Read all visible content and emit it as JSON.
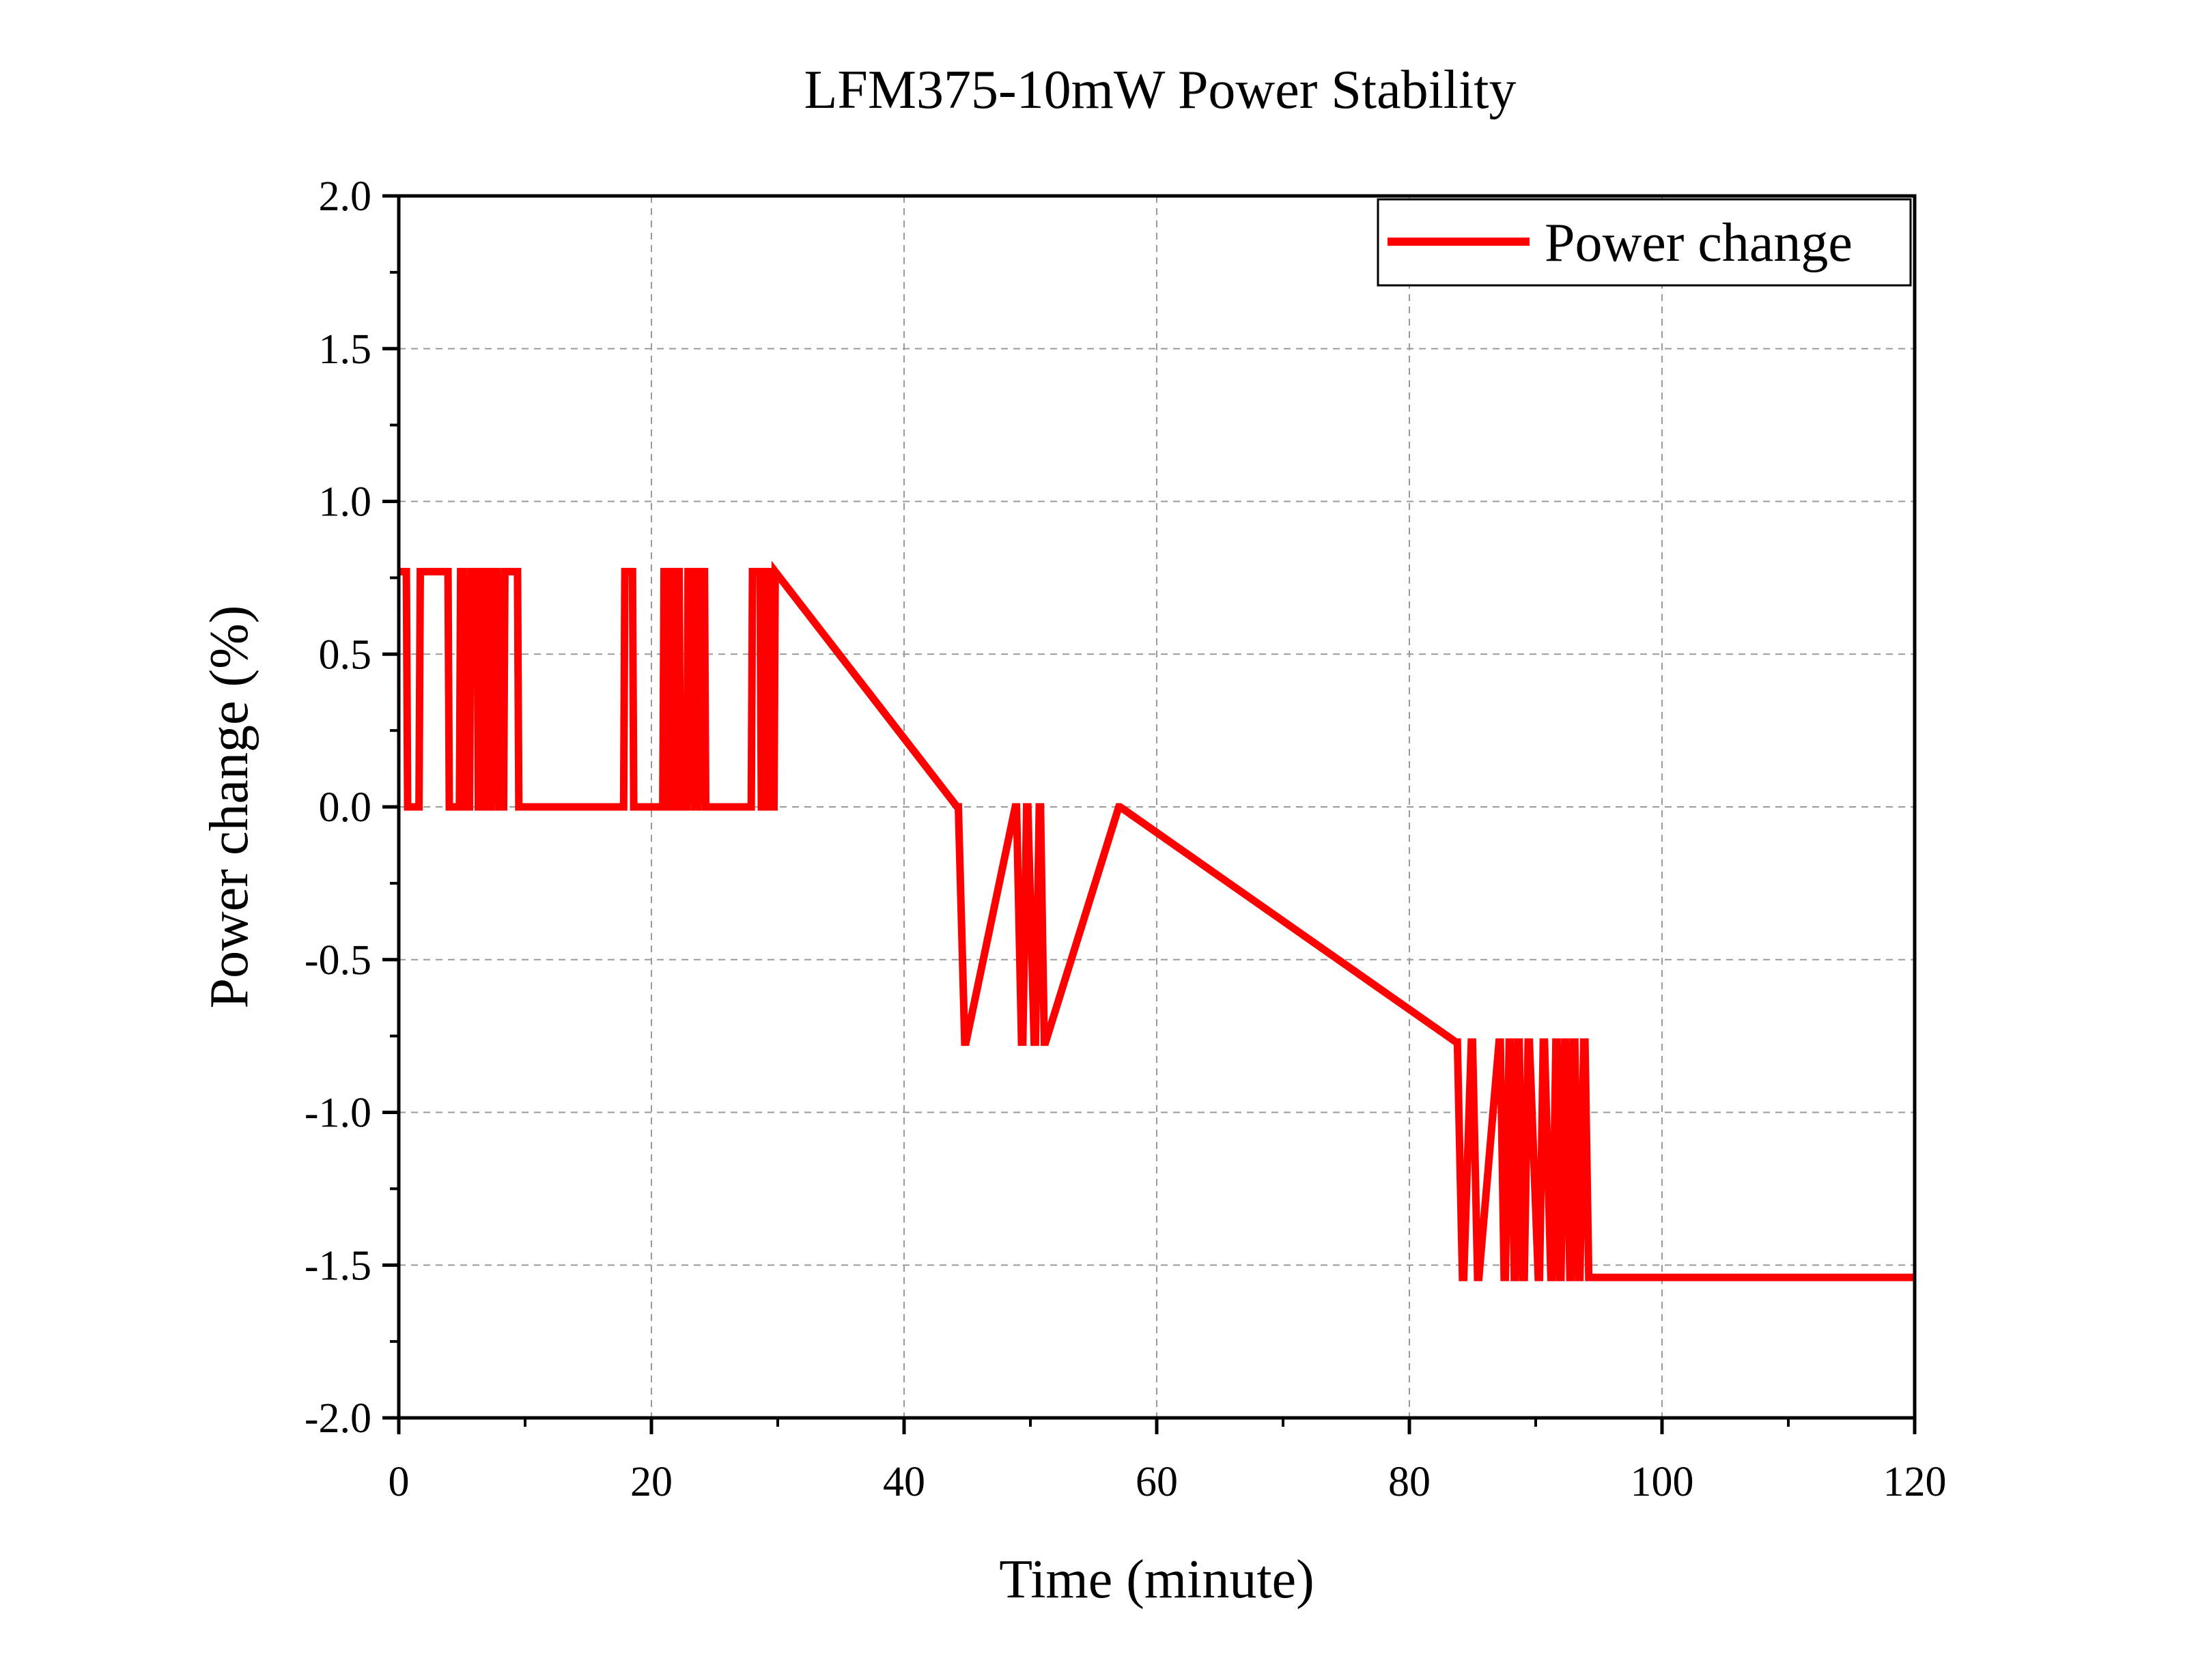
{
  "chart_data": {
    "type": "line",
    "title": "LFM375-10mW Power Stability",
    "xlabel": "Time (minute)",
    "ylabel": "Power change (%)",
    "xlim": [
      0,
      120
    ],
    "ylim": [
      -2.0,
      2.0
    ],
    "xticks": [
      "0",
      "20",
      "40",
      "60",
      "80",
      "100",
      "120"
    ],
    "yticks": [
      "2.0",
      "1.5",
      "1.0",
      "0.5",
      "0.0",
      "-0.5",
      "-1.0",
      "-1.5",
      "-2.0"
    ],
    "grid": true,
    "legend_position": "top-right",
    "line_color": "#ff0000",
    "series": [
      {
        "name": "Power change",
        "color": "#ff0000",
        "x": [
          0,
          0.6,
          0.7,
          1.6,
          1.7,
          3.9,
          4.0,
          4.8,
          4.9,
          5.1,
          5.2,
          5.6,
          5.7,
          6.2,
          6.3,
          6.6,
          6.7,
          7.0,
          7.1,
          7.3,
          7.4,
          7.8,
          7.9,
          8.3,
          8.4,
          9.4,
          9.5,
          17.8,
          17.9,
          18.5,
          18.6,
          20.9,
          21.0,
          21.3,
          21.4,
          21.7,
          21.8,
          22.2,
          22.3,
          22.8,
          22.9,
          23.3,
          23.4,
          23.7,
          23.8,
          24.2,
          24.3,
          27.9,
          28.0,
          28.6,
          28.7,
          29.0,
          29.1,
          29.3,
          29.4,
          29.7,
          29.8,
          44.2,
          44.3,
          44.8,
          44.9,
          48.8,
          48.9,
          49.3,
          49.4,
          49.7,
          49.8,
          50.3,
          50.4,
          50.7,
          50.8,
          51.1,
          51.2,
          57.0,
          57.1,
          83.7,
          83.8,
          84.2,
          84.3,
          84.9,
          85.0,
          85.4,
          85.5,
          87.1,
          87.2,
          87.5,
          87.6,
          87.9,
          88.0,
          88.3,
          88.4,
          88.6,
          88.7,
          89.0,
          89.1,
          89.4,
          89.5,
          90.2,
          90.3,
          90.6,
          90.7,
          91.2,
          91.3,
          91.6,
          91.7,
          91.9,
          92.0,
          92.3,
          92.4,
          92.7,
          92.8,
          93.0,
          93.1,
          93.4,
          93.5,
          93.8,
          93.9,
          94.2,
          94.3,
          120
        ],
        "y": [
          0.77,
          0.77,
          0,
          0,
          0.77,
          0.77,
          0,
          0,
          0.77,
          0.77,
          0,
          0,
          0.77,
          0.77,
          0,
          0,
          0.77,
          0.77,
          0,
          0,
          0.77,
          0.77,
          0,
          0,
          0.77,
          0.77,
          0,
          0,
          0.77,
          0.77,
          0,
          0,
          0.77,
          0.77,
          0,
          0,
          0.77,
          0.77,
          0,
          0,
          0.77,
          0.77,
          0,
          0,
          0.77,
          0.77,
          0,
          0,
          0.77,
          0.77,
          0,
          0,
          0.77,
          0.77,
          0,
          0,
          0.77,
          0,
          0,
          -0.77,
          -0.77,
          0,
          0,
          -0.77,
          -0.77,
          0,
          0,
          -0.77,
          -0.77,
          0,
          0,
          -0.77,
          -0.77,
          0,
          0,
          -0.77,
          -0.77,
          -1.54,
          -1.54,
          -0.77,
          -0.77,
          -1.54,
          -1.54,
          -0.77,
          -0.77,
          -1.54,
          -1.54,
          -0.77,
          -0.77,
          -1.54,
          -1.54,
          -0.77,
          -0.77,
          -1.54,
          -1.54,
          -0.77,
          -0.77,
          -1.54,
          -1.54,
          -0.77,
          -0.77,
          -1.54,
          -1.54,
          -0.77,
          -0.77,
          -1.54,
          -1.54,
          -0.77,
          -0.77,
          -1.54,
          -1.54,
          -0.77,
          -0.77,
          -1.54,
          -1.54,
          -0.77,
          -0.77,
          -1.54,
          -1.54,
          -1.54
        ]
      }
    ]
  }
}
